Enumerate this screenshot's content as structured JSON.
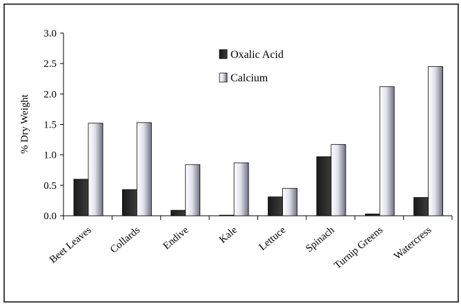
{
  "chart_data": {
    "type": "bar",
    "ylabel": "% Dry Weight",
    "ylim": [
      0,
      3.0
    ],
    "yticks": [
      "0.0",
      "0.5",
      "1.0",
      "1.5",
      "2.0",
      "2.5",
      "3.0"
    ],
    "grid": false,
    "legend_position": "top-center",
    "categories": [
      "Beet Leaves",
      "Collards",
      "Endive",
      "Kale",
      "Lettuce",
      "Spinach",
      "Turnip Greens",
      "Watercress"
    ],
    "series": [
      {
        "name": "Oxalic Acid",
        "color": "#2b2b2b",
        "values": [
          0.6,
          0.43,
          0.09,
          0.01,
          0.31,
          0.97,
          0.03,
          0.3
        ]
      },
      {
        "name": "Calcium",
        "color": "#d8d8e8",
        "values": [
          1.52,
          1.53,
          0.84,
          0.87,
          0.45,
          1.17,
          2.12,
          2.45
        ]
      }
    ]
  }
}
